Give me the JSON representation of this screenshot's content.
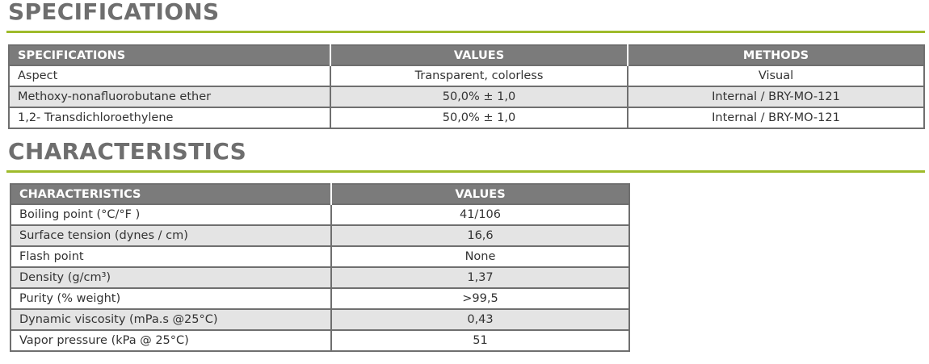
{
  "sections": [
    {
      "title": "SPECIFICATIONS",
      "table": {
        "header": [
          "SPECIFICATIONS",
          "VALUES",
          "METHODS"
        ],
        "rows": [
          [
            "Aspect",
            "Transparent, colorless",
            "Visual"
          ],
          [
            "Methoxy-nonafluorobutane ether",
            "50,0% ± 1,0",
            "Internal / BRY-MO-121"
          ],
          [
            "1,2- Transdichloroethylene",
            "50,0% ± 1,0",
            "Internal / BRY-MO-121"
          ]
        ]
      }
    },
    {
      "title": "CHARACTERISTICS",
      "table": {
        "header": [
          "CHARACTERISTICS",
          "VALUES"
        ],
        "rows": [
          [
            "Boiling point (°C/°F )",
            "41/106"
          ],
          [
            "Surface tension (dynes / cm)",
            "16,6"
          ],
          [
            "Flash point",
            "None"
          ],
          [
            "Density (g/cm³)",
            "1,37"
          ],
          [
            "Purity (% weight)",
            ">99,5"
          ],
          [
            "Dynamic viscosity (mPa.s @25°C)",
            "0,43"
          ],
          [
            "Vapor pressure (kPa @ 25°C)",
            "51"
          ]
        ]
      }
    }
  ]
}
